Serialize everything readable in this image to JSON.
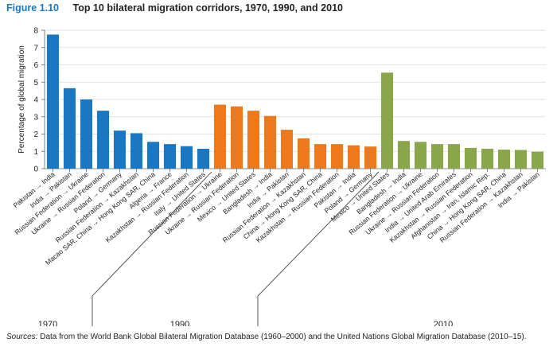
{
  "figure": {
    "label": "Figure 1.10",
    "title": "Top 10 bilateral migration corridors, 1970, 1990, and 2010"
  },
  "source": {
    "prefix": "Sources:",
    "text": "Data from the World Bank Global Bilateral Migration Database (1960–2000) and the United Nations Global Migration Database (2010–15)."
  },
  "colors": {
    "1970": "#1a78c2",
    "1990": "#ec7a1c",
    "2010": "#8aa64a"
  },
  "chart_data": {
    "type": "bar",
    "title": "Top 10 bilateral migration corridors, 1970, 1990, and 2010",
    "xlabel": "",
    "ylabel": "Percentage of global migration",
    "ylim": [
      0,
      8
    ],
    "yticks": [
      0,
      1,
      2,
      3,
      4,
      5,
      6,
      7,
      8
    ],
    "grid": true,
    "legend": "none",
    "groups": [
      {
        "name": "1970",
        "categories": [
          "Pakistan → India",
          "India → Pakistan",
          "Russian Federation → Ukraine",
          "Ukraine → Russian Federation",
          "Poland → Germany",
          "Russian Federation → Kazakhstan",
          "Macao SAR, China → Hong Kong SAR, China",
          "Algeria → France",
          "Kazakhstan → Russian Federation",
          "Italy → United States"
        ],
        "values": [
          7.75,
          4.65,
          4.0,
          3.35,
          2.2,
          2.05,
          1.55,
          1.42,
          1.3,
          1.15
        ]
      },
      {
        "name": "1990",
        "categories": [
          "Russian Federation → Ukraine",
          "Ukraine → Russian Federation",
          "Mexico → United States",
          "Bangladesh → India",
          "India → Pakistan",
          "Russian Federation → Kazakhstan",
          "China → Hong Kong SAR, China",
          "Kazakhstan → Russian Federation",
          "Pakistan → India",
          "Poland → Germany"
        ],
        "values": [
          3.7,
          3.6,
          3.35,
          3.05,
          2.25,
          1.75,
          1.42,
          1.42,
          1.35,
          1.28
        ]
      },
      {
        "name": "2010",
        "categories": [
          "Mexico → United States",
          "Bangladesh → India",
          "Russian Federation → Ukraine",
          "Ukraine → Russian Federation",
          "India → United Arab Emirates",
          "Kazakhstan → Russian Federation",
          "Afghanistan → Iran, Islamic Rep.",
          "China → Hong Kong SAR, China",
          "Russian Federation → Kazakhstan",
          "India → Pakistan"
        ],
        "values": [
          5.55,
          1.6,
          1.55,
          1.42,
          1.42,
          1.2,
          1.15,
          1.1,
          1.08,
          0.98
        ]
      }
    ]
  }
}
